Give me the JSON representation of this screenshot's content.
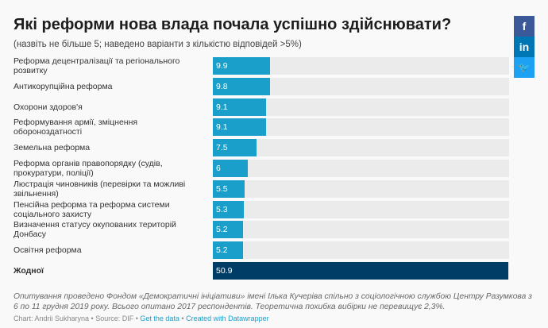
{
  "title": "Які реформи нова влада почала успішно здійснювати?",
  "subtitle": "(назвіть не більше 5; наведено варіанти з кількістю відповідей >5%)",
  "social": {
    "facebook": "f",
    "linkedin": "in",
    "twitter": "🐦"
  },
  "chart_data": {
    "type": "bar",
    "orientation": "horizontal",
    "xlim": [
      0,
      51
    ],
    "categories": [
      "Реформа децентралізації та регіонального розвитку",
      "Антикорупційна реформа",
      "Охорони здоров'я",
      "Реформування армії, зміцнення обороноздатності",
      "Земельна реформа",
      "Реформа органів правопорядку (судів, прокуратури, поліції)",
      "Люстрація чиновників (перевірки та можливі звільнення)",
      "Пенсійна реформа та реформа системи соціального захисту",
      "Визначення статусу окупованих територій Донбасу",
      "Освітня реформа",
      "Жодної"
    ],
    "values": [
      9.9,
      9.8,
      9.1,
      9.1,
      7.5,
      6,
      5.5,
      5.3,
      5.2,
      5.2,
      50.9
    ],
    "labels": [
      "9.9",
      "9.8",
      "9.1",
      "9.1",
      "7.5",
      "6",
      "5.5",
      "5.3",
      "5.2",
      "5.2",
      "50.9"
    ],
    "colors": {
      "default": "#1a9fca",
      "highlight": "#003d66",
      "track": "#ebebeb"
    }
  },
  "note": "Опитування проведено Фондом «Демократичні ініціативи» імені Ілька Кучеріва спільно з соціологічною службою Центру Разумкова з 6 по 11 грудня 2019 року. Всього опитано 2017 респондентів. Теоретична похибка вибірки не перевищує 2,3%.",
  "footer": {
    "credit": "Chart: Andrii Sukharyna • Source: DIF • ",
    "get_data": "Get the data",
    "sep": " • ",
    "created": "Created with Datawrapper"
  }
}
